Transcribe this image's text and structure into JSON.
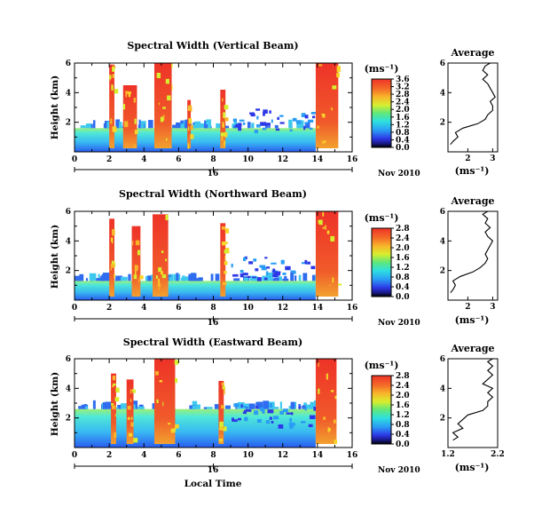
{
  "figure": {
    "x_label": "Local Time",
    "date_suffix": "Nov 2010",
    "date_day": "16",
    "y_label": "Height (km)",
    "unit_label": "(ms⁻¹)",
    "avg_title": "Average"
  },
  "chart_data": [
    {
      "type": "heatmap",
      "title": "Spectral Width (Vertical Beam)",
      "xlabel": "",
      "ylabel": "Height (km)",
      "xlim": [
        0,
        16
      ],
      "ylim": [
        0,
        6
      ],
      "x_ticks": [
        "0",
        "2",
        "4",
        "6",
        "8",
        "10",
        "12",
        "14",
        "16"
      ],
      "y_ticks": [
        "2",
        "4",
        "6"
      ],
      "colorbar": {
        "min": 0.0,
        "max": 3.6,
        "ticks": [
          "0.0",
          "0.4",
          "0.8",
          "1.2",
          "1.6",
          "2.0",
          "2.4",
          "2.8",
          "3.2",
          "3.6"
        ]
      },
      "hot_bands": [
        [
          2.0,
          2.3,
          5.9
        ],
        [
          2.8,
          3.6,
          4.5
        ],
        [
          4.6,
          5.6,
          6.0
        ],
        [
          6.5,
          6.7,
          3.5
        ],
        [
          8.4,
          8.7,
          4.2
        ],
        [
          13.9,
          15.2,
          6.0
        ]
      ],
      "background_top_km": 1.6,
      "average": {
        "title": "Average",
        "xlim": [
          1.2,
          3.2
        ],
        "x_ticks": [
          "2",
          "3"
        ],
        "y_ticks": [
          "2",
          "4",
          "6"
        ],
        "height_km": [
          0.5,
          0.7,
          1.0,
          1.3,
          1.6,
          1.9,
          2.2,
          2.5,
          2.8,
          3.1,
          3.4,
          3.7,
          4.0,
          4.3,
          4.6,
          4.9,
          5.2,
          5.5,
          5.8,
          6.0
        ],
        "values": [
          1.3,
          1.4,
          1.6,
          1.5,
          1.8,
          2.4,
          2.7,
          2.8,
          3.0,
          3.0,
          2.9,
          3.1,
          3.0,
          2.9,
          2.8,
          2.6,
          2.8,
          2.6,
          2.7,
          2.9
        ]
      }
    },
    {
      "type": "heatmap",
      "title": "Spectral Width (Northward Beam)",
      "xlabel": "",
      "ylabel": "Height (km)",
      "xlim": [
        0,
        16
      ],
      "ylim": [
        0,
        6
      ],
      "x_ticks": [
        "0",
        "2",
        "4",
        "6",
        "8",
        "10",
        "12",
        "14",
        "16"
      ],
      "y_ticks": [
        "2",
        "4",
        "6"
      ],
      "colorbar": {
        "min": 0.0,
        "max": 2.8,
        "ticks": [
          "0.0",
          "0.4",
          "0.8",
          "1.2",
          "1.6",
          "2.0",
          "2.4",
          "2.8"
        ]
      },
      "hot_bands": [
        [
          2.0,
          2.3,
          5.5
        ],
        [
          3.3,
          3.8,
          5.0
        ],
        [
          4.5,
          5.4,
          5.8
        ],
        [
          8.4,
          8.7,
          5.2
        ],
        [
          13.9,
          15.2,
          6.0
        ]
      ],
      "background_top_km": 1.3,
      "average": {
        "title": "Average",
        "xlim": [
          1.2,
          3.2
        ],
        "x_ticks": [
          "2",
          "3"
        ],
        "y_ticks": [
          "2",
          "4",
          "6"
        ],
        "height_km": [
          0.5,
          0.7,
          1.0,
          1.3,
          1.6,
          1.9,
          2.2,
          2.5,
          2.8,
          3.1,
          3.4,
          3.7,
          4.0,
          4.3,
          4.6,
          4.9,
          5.2,
          5.5,
          5.8,
          6.0
        ],
        "values": [
          1.3,
          1.4,
          1.5,
          1.4,
          1.7,
          2.2,
          2.5,
          2.7,
          2.8,
          2.7,
          2.8,
          2.9,
          3.0,
          2.8,
          2.7,
          2.9,
          2.7,
          2.8,
          2.6,
          2.8
        ]
      }
    },
    {
      "type": "heatmap",
      "title": "Spectral Width (Eastward Beam)",
      "xlabel": "Local Time",
      "ylabel": "Height (km)",
      "xlim": [
        0,
        16
      ],
      "ylim": [
        0,
        6
      ],
      "x_ticks": [
        "0",
        "2",
        "4",
        "6",
        "8",
        "10",
        "12",
        "14",
        "16"
      ],
      "y_ticks": [
        "2",
        "4",
        "6"
      ],
      "colorbar": {
        "min": 0.0,
        "max": 2.8,
        "ticks": [
          "0.0",
          "0.4",
          "0.8",
          "1.2",
          "1.6",
          "2.0",
          "2.4",
          "2.8"
        ]
      },
      "hot_bands": [
        [
          2.1,
          2.4,
          5.0
        ],
        [
          3.0,
          3.4,
          4.6
        ],
        [
          4.6,
          5.8,
          6.0
        ],
        [
          8.3,
          8.6,
          4.5
        ],
        [
          13.9,
          15.1,
          6.0
        ]
      ],
      "background_top_km": 2.6,
      "average": {
        "title": "Average",
        "xlim": [
          1.2,
          2.2
        ],
        "x_ticks": [
          "1.2",
          "2.2"
        ],
        "y_ticks": [
          "2",
          "4",
          "6"
        ],
        "height_km": [
          0.5,
          0.7,
          1.0,
          1.3,
          1.6,
          1.9,
          2.2,
          2.5,
          2.8,
          3.1,
          3.4,
          3.7,
          4.0,
          4.3,
          4.6,
          4.9,
          5.2,
          5.5,
          5.8,
          6.0
        ],
        "values": [
          1.3,
          1.4,
          1.3,
          1.5,
          1.4,
          1.5,
          1.6,
          1.9,
          2.0,
          2.0,
          2.1,
          2.0,
          2.1,
          1.9,
          2.0,
          2.1,
          2.0,
          2.1,
          2.0,
          2.1
        ]
      }
    }
  ]
}
